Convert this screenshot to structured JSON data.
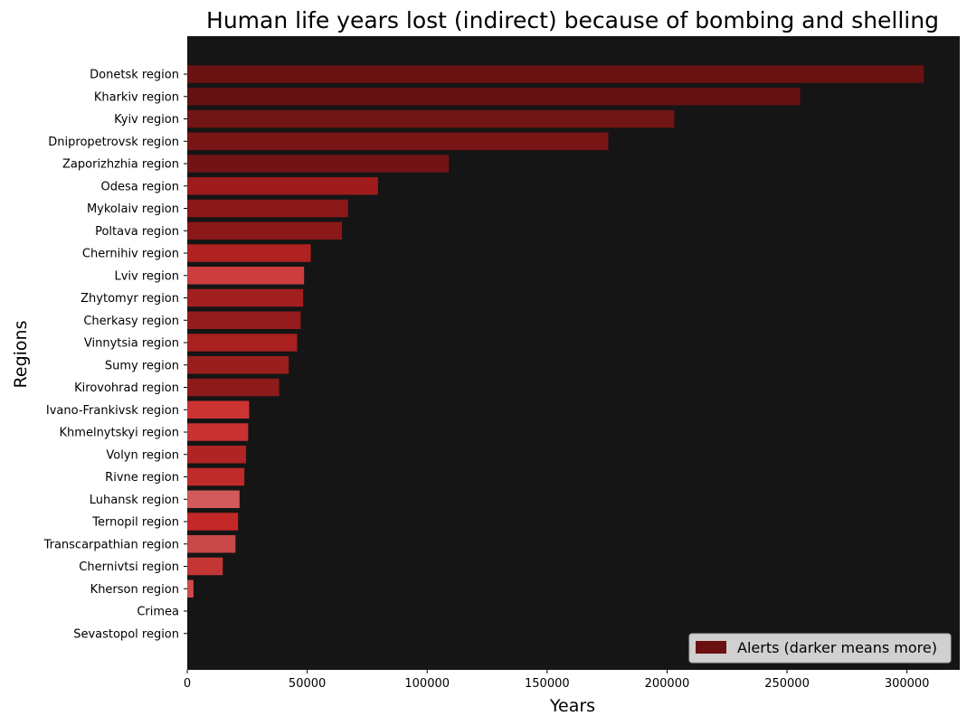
{
  "chart_data": {
    "type": "bar",
    "orientation": "horizontal",
    "title": "Human life years lost (indirect) because of bombing and shelling",
    "xlabel": "Years",
    "ylabel": "Regions",
    "xlim": [
      0,
      322000
    ],
    "xticks": [
      0,
      50000,
      100000,
      150000,
      200000,
      250000,
      300000
    ],
    "grid": false,
    "background": "#151515",
    "legend": {
      "label": "Alerts (darker means more)",
      "color": "#6b1010",
      "placement": "bottom-right"
    },
    "categories": [
      "Donetsk region",
      "Kharkiv region",
      "Kyiv region",
      "Dnipropetrovsk region",
      "Zaporizhzhia region",
      "Odesa region",
      "Mykolaiv region",
      "Poltava region",
      "Chernihiv region",
      "Lviv region",
      "Zhytomyr region",
      "Cherkasy region",
      "Vinnytsia region",
      "Sumy region",
      "Kirovohrad region",
      "Ivano-Frankivsk region",
      "Khmelnytskyi region",
      "Volyn region",
      "Rivne region",
      "Luhansk region",
      "Ternopil region",
      "Transcarpathian region",
      "Chernivtsi region",
      "Kherson region",
      "Crimea",
      "Sevastopol region"
    ],
    "values": [
      307000,
      255500,
      203000,
      175500,
      109000,
      79500,
      67000,
      64500,
      51500,
      48700,
      48300,
      47300,
      45800,
      42300,
      38300,
      25800,
      25400,
      24500,
      23800,
      21800,
      21200,
      20100,
      14800,
      2600,
      0,
      0
    ],
    "colors": [
      "#6a1212",
      "#631111",
      "#721515",
      "#7a1515",
      "#731414",
      "#9e1c1c",
      "#8a1818",
      "#8a1818",
      "#b02222",
      "#cc3d3d",
      "#a11f1f",
      "#951c1c",
      "#a82020",
      "#9b1e1e",
      "#8e1a1a",
      "#cc3434",
      "#c83232",
      "#b12424",
      "#bf2a2a",
      "#d35a5a",
      "#c22828",
      "#c84848",
      "#c43636",
      "#d04848",
      "#d04848",
      "#d04848"
    ]
  }
}
